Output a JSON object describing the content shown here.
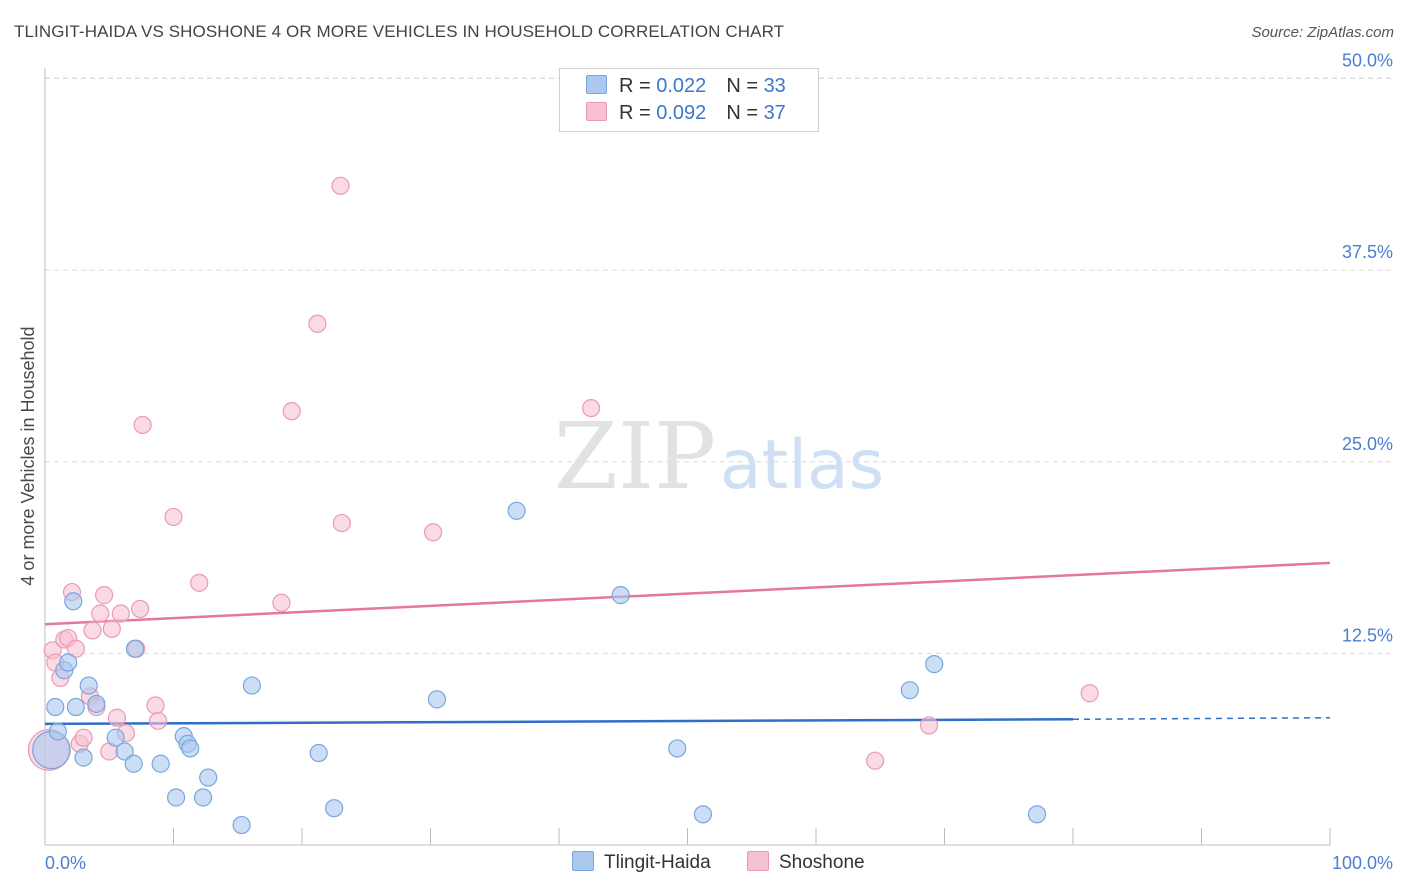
{
  "header": {
    "title": "TLINGIT-HAIDA VS SHOSHONE 4 OR MORE VEHICLES IN HOUSEHOLD CORRELATION CHART",
    "source": "Source: ZipAtlas.com"
  },
  "watermark": {
    "zip": "ZIP",
    "atlas": "atlas"
  },
  "legend": {
    "rows": [
      {
        "r_label": "R = ",
        "r_value": "0.022",
        "n_label": "N = ",
        "n_value": "33"
      },
      {
        "r_label": "R = ",
        "r_value": "0.092",
        "n_label": "N = ",
        "n_value": "37"
      }
    ]
  },
  "bottom_legend": {
    "series_a": "Tlingit-Haida",
    "series_b": "Shoshone"
  },
  "colors": {
    "blue_fill": "#aac8f0",
    "blue_stroke": "#7aa6de",
    "blue_line": "#2f6fc9",
    "pink_fill": "#f6c1d0",
    "pink_stroke": "#eb9ab4",
    "pink_line": "#e5779b",
    "grid": "#dcdcdc",
    "axis_text": "#4a7fd0"
  },
  "chart_data": {
    "type": "scatter",
    "title": "TLINGIT-HAIDA VS SHOSHONE 4 OR MORE VEHICLES IN HOUSEHOLD CORRELATION CHART",
    "xlabel": "",
    "ylabel": "4 or more Vehicles in Household",
    "xlim": [
      0,
      100
    ],
    "ylim": [
      0,
      52
    ],
    "x_tick_labels": [
      "0.0%",
      "100.0%"
    ],
    "y_ticks": [
      12.5,
      25.0,
      37.5,
      50.0
    ],
    "y_tick_labels": [
      "12.5%",
      "25.0%",
      "37.5%",
      "50.0%"
    ],
    "grid": true,
    "legend_position": "top-center",
    "series": [
      {
        "name": "Tlingit-Haida",
        "R": 0.022,
        "N": 33,
        "trend": {
          "x0": 0,
          "y0": 7.9,
          "x1": 80,
          "y1": 8.2,
          "dashed_to_x": 100,
          "dashed_to_y": 8.3
        },
        "points": [
          [
            0.5,
            6.2,
            2.2
          ],
          [
            0.8,
            9.0,
            1
          ],
          [
            1.0,
            7.4,
            1
          ],
          [
            1.5,
            11.4,
            1
          ],
          [
            1.8,
            11.9,
            1
          ],
          [
            2.2,
            15.9,
            1
          ],
          [
            2.4,
            9.0,
            1
          ],
          [
            3.0,
            5.7,
            1
          ],
          [
            3.4,
            10.4,
            1
          ],
          [
            4.0,
            9.2,
            1
          ],
          [
            5.5,
            7.0,
            1
          ],
          [
            6.2,
            6.1,
            1
          ],
          [
            6.9,
            5.3,
            1
          ],
          [
            7.0,
            12.8,
            1
          ],
          [
            9.0,
            5.3,
            1
          ],
          [
            10.2,
            3.1,
            1
          ],
          [
            10.8,
            7.1,
            1
          ],
          [
            11.1,
            6.6,
            1
          ],
          [
            11.3,
            6.3,
            1
          ],
          [
            12.3,
            3.1,
            1
          ],
          [
            12.7,
            4.4,
            1
          ],
          [
            15.3,
            1.3,
            1
          ],
          [
            16.1,
            10.4,
            1
          ],
          [
            21.3,
            6.0,
            1
          ],
          [
            22.5,
            2.4,
            1
          ],
          [
            30.5,
            9.5,
            1
          ],
          [
            36.7,
            21.8,
            1
          ],
          [
            44.8,
            16.3,
            1
          ],
          [
            49.2,
            6.3,
            1
          ],
          [
            51.2,
            2.0,
            1
          ],
          [
            67.3,
            10.1,
            1
          ],
          [
            69.2,
            11.8,
            1
          ],
          [
            77.2,
            2.0,
            1
          ]
        ]
      },
      {
        "name": "Shoshone",
        "R": 0.092,
        "N": 37,
        "trend": {
          "x0": 0,
          "y0": 14.4,
          "x1": 100,
          "y1": 18.4
        },
        "points": [
          [
            0.3,
            6.2,
            2.4
          ],
          [
            0.6,
            12.7,
            1
          ],
          [
            0.8,
            11.9,
            1
          ],
          [
            1.2,
            10.9,
            1
          ],
          [
            1.5,
            13.4,
            1
          ],
          [
            1.8,
            13.5,
            1
          ],
          [
            2.1,
            16.5,
            1
          ],
          [
            2.4,
            12.8,
            1
          ],
          [
            2.7,
            6.6,
            1
          ],
          [
            3.0,
            7.0,
            1
          ],
          [
            3.5,
            9.7,
            1
          ],
          [
            3.7,
            14.0,
            1
          ],
          [
            4.0,
            9.0,
            1
          ],
          [
            4.3,
            15.1,
            1
          ],
          [
            4.6,
            16.3,
            1
          ],
          [
            5.0,
            6.1,
            1
          ],
          [
            5.2,
            14.1,
            1
          ],
          [
            5.6,
            8.3,
            1
          ],
          [
            5.9,
            15.1,
            1
          ],
          [
            6.3,
            7.3,
            1
          ],
          [
            7.1,
            12.8,
            1
          ],
          [
            7.4,
            15.4,
            1
          ],
          [
            7.6,
            27.4,
            1
          ],
          [
            8.6,
            9.1,
            1
          ],
          [
            8.8,
            8.1,
            1
          ],
          [
            10.0,
            21.4,
            1
          ],
          [
            12.0,
            17.1,
            1
          ],
          [
            18.4,
            15.8,
            1
          ],
          [
            19.2,
            28.3,
            1
          ],
          [
            21.2,
            34.0,
            1
          ],
          [
            23.0,
            43.0,
            1
          ],
          [
            23.1,
            21.0,
            1
          ],
          [
            30.2,
            20.4,
            1
          ],
          [
            42.5,
            28.5,
            1
          ],
          [
            64.6,
            5.5,
            1
          ],
          [
            68.8,
            7.8,
            1
          ],
          [
            81.3,
            9.9,
            1
          ]
        ]
      }
    ]
  }
}
